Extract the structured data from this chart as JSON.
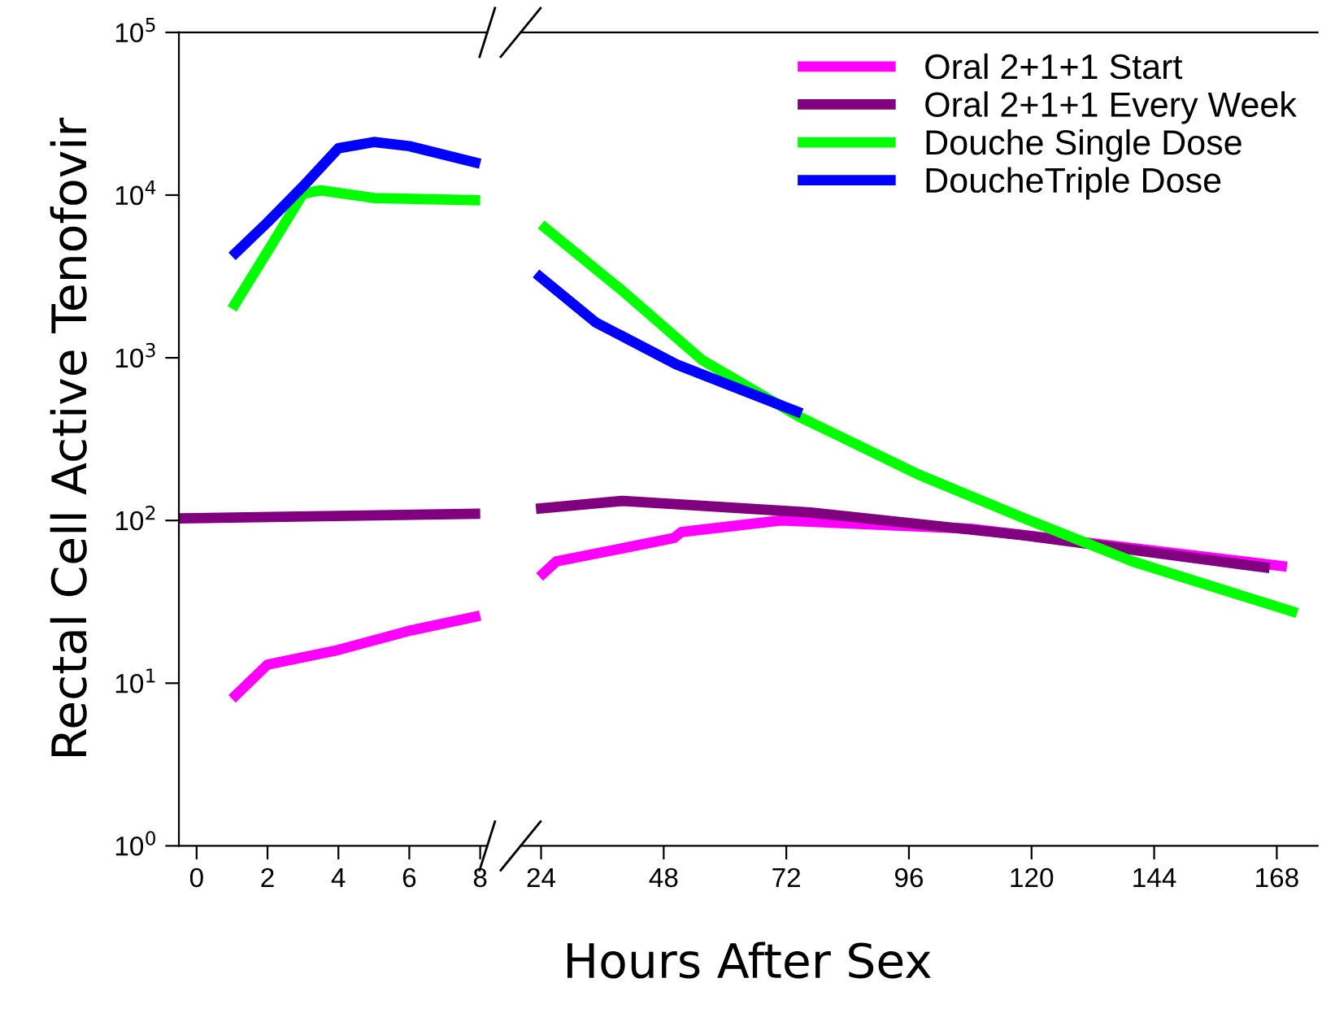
{
  "chart_data": [
    {
      "type": "line",
      "ylabel": "Rectal Cell Active Tenofovir",
      "xlabel": "Hours After Sex",
      "log": "y",
      "xlim": [
        -0.5,
        8.2
      ],
      "xticks": [
        0,
        2,
        4,
        6,
        8
      ],
      "ylim": [
        1,
        100000
      ],
      "yticks": [
        {
          "value": 1,
          "label": "10$^{0}$"
        },
        {
          "value": 10,
          "label": "10$^{1}$"
        },
        {
          "value": 100,
          "label": "10$^{2}$"
        },
        {
          "value": 1000,
          "label": "10$^{3}$"
        },
        {
          "value": 10000,
          "label": "10$^{4}$"
        },
        {
          "value": 100000,
          "label": "10$^{5}$"
        }
      ],
      "grid": false,
      "legend": false,
      "line_style": "solid",
      "marker": "none",
      "series": [
        {
          "color": "#ff00ff",
          "x": [
            1,
            2,
            4,
            6,
            8
          ],
          "values": [
            8,
            13,
            16,
            21,
            26
          ]
        },
        {
          "color": "#800080",
          "x": [
            -0.5,
            8
          ],
          "values": [
            103,
            110
          ]
        },
        {
          "color": "#00ff00",
          "x": [
            1,
            2,
            3,
            3.5,
            5,
            8
          ],
          "values": [
            2000,
            4500,
            10200,
            10700,
            9600,
            9300
          ]
        },
        {
          "color": "#0000ff",
          "x": [
            1,
            2,
            3,
            4,
            5,
            6,
            8
          ],
          "values": [
            4200,
            6800,
            11300,
            19400,
            21200,
            20000,
            15600
          ]
        }
      ]
    },
    {
      "type": "line",
      "log": "y",
      "xlim": [
        20,
        176
      ],
      "xticks": [
        24,
        48,
        72,
        96,
        120,
        144,
        168
      ],
      "ylim": [
        1,
        100000
      ],
      "tick_labels": "x",
      "grid": false,
      "legend": "top right",
      "line_style": "solid",
      "marker": "none",
      "series": [
        {
          "name": "Oral 2+1+1 Start",
          "color": "#ff00ff",
          "x": [
            23.7,
            27,
            50,
            51.5,
            71,
            108,
            170
          ],
          "values": [
            45,
            56,
            78,
            85,
            100,
            89,
            52
          ]
        },
        {
          "name": "Oral 2+1+1 Every Week",
          "color": "#800080",
          "x": [
            23,
            40,
            76.7,
            118.6,
            166.6
          ],
          "values": [
            118,
            132,
            112,
            81,
            51
          ]
        },
        {
          "name": "Douche Single Dose",
          "color": "#00ff00",
          "x": [
            24,
            39.8,
            55.5,
            74.5,
            97.8,
            118.6,
            139.8,
            172
          ],
          "values": [
            6600,
            2600,
            970,
            435,
            192,
            103,
            56,
            27
          ]
        },
        {
          "name": "DoucheTriple Dose",
          "color": "#0000ff",
          "x": [
            23,
            34.7,
            50.5,
            75
          ],
          "values": [
            3300,
            1650,
            910,
            455
          ]
        }
      ]
    }
  ]
}
